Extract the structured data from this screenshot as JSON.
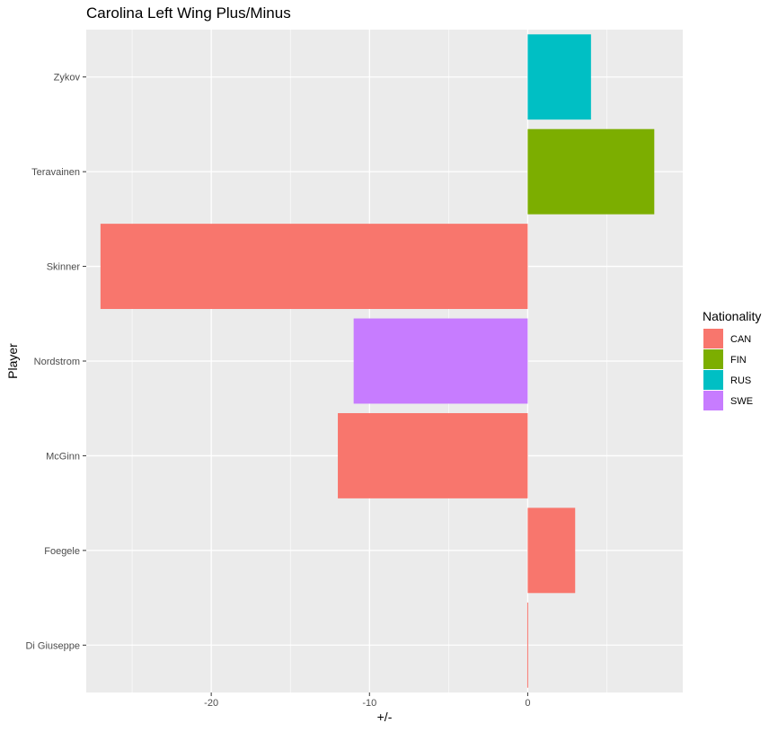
{
  "chart_data": {
    "type": "bar",
    "orientation": "horizontal",
    "title": "Carolina Left Wing Plus/Minus",
    "xlabel": "+/-",
    "ylabel": "Player",
    "xlim": [
      -27.9,
      9.8
    ],
    "x_ticks": [
      -20,
      -10,
      0
    ],
    "x_tick_labels": [
      "-20",
      "-10",
      "0"
    ],
    "grid": true,
    "categories": [
      "Di Giuseppe",
      "Foegele",
      "McGinn",
      "Nordstrom",
      "Skinner",
      "Teravainen",
      "Zykov"
    ],
    "values": [
      0,
      3,
      -12,
      -11,
      -27,
      8,
      4
    ],
    "nationality": [
      "CAN",
      "CAN",
      "CAN",
      "SWE",
      "CAN",
      "FIN",
      "RUS"
    ],
    "legend": {
      "title": "Nationality",
      "position": "right",
      "entries": [
        {
          "label": "CAN",
          "color": "#F8766D"
        },
        {
          "label": "FIN",
          "color": "#7CAE00"
        },
        {
          "label": "RUS",
          "color": "#00BFC4"
        },
        {
          "label": "SWE",
          "color": "#C77CFF"
        }
      ]
    },
    "colors": {
      "panel_background": "#EBEBEB",
      "gridline": "#FFFFFF",
      "CAN": "#F8766D",
      "FIN": "#7CAE00",
      "RUS": "#00BFC4",
      "SWE": "#C77CFF"
    }
  }
}
